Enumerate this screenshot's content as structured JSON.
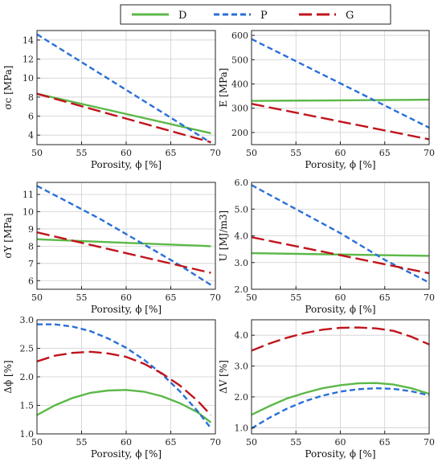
{
  "legend": [
    {
      "name": "D",
      "color": "#5cb848",
      "dash": "solid"
    },
    {
      "name": "P",
      "color": "#2a6fd8",
      "dash": "dashed"
    },
    {
      "name": "G",
      "color": "#c0141c",
      "dash": "longdash"
    }
  ],
  "chart_data": [
    {
      "type": "line",
      "ylabel": "σc [MPa]",
      "xlabel": "Porosity, ϕ [%]",
      "xlim": [
        50,
        70
      ],
      "ylim": [
        3,
        15
      ],
      "xticks": [
        50,
        55,
        60,
        65,
        70
      ],
      "yticks": [
        4,
        6,
        8,
        10,
        12,
        14
      ],
      "ytick_labels": [
        "4",
        "6",
        "8",
        "10",
        "12",
        "14"
      ],
      "series": [
        {
          "name": "D",
          "x": [
            50,
            69.5
          ],
          "y": [
            8.35,
            4.2
          ]
        },
        {
          "name": "P",
          "x": [
            50,
            69.5
          ],
          "y": [
            14.6,
            3.2
          ]
        },
        {
          "name": "G",
          "x": [
            50,
            69.5
          ],
          "y": [
            8.35,
            3.25
          ]
        }
      ]
    },
    {
      "type": "line",
      "ylabel": "E [MPa]",
      "xlabel": "Porosity, ϕ [%]",
      "xlim": [
        50,
        70
      ],
      "ylim": [
        150,
        620
      ],
      "xticks": [
        50,
        55,
        60,
        65,
        70
      ],
      "yticks": [
        200,
        300,
        400,
        500,
        600
      ],
      "ytick_labels": [
        "200",
        "300",
        "400",
        "500",
        "600"
      ],
      "series": [
        {
          "name": "D",
          "x": [
            50,
            70
          ],
          "y": [
            330,
            335
          ]
        },
        {
          "name": "P",
          "x": [
            50,
            70
          ],
          "y": [
            585,
            220
          ]
        },
        {
          "name": "G",
          "x": [
            50,
            70
          ],
          "y": [
            318,
            172
          ]
        }
      ]
    },
    {
      "type": "line",
      "ylabel": "σY [MPa]",
      "xlabel": "Porosity, ϕ [%]",
      "xlim": [
        50,
        70
      ],
      "ylim": [
        5.5,
        11.7
      ],
      "xticks": [
        50,
        55,
        60,
        65,
        70
      ],
      "yticks": [
        6,
        7,
        8,
        9,
        10,
        11
      ],
      "ytick_labels": [
        "6",
        "7",
        "8",
        "9",
        "10",
        "11"
      ],
      "series": [
        {
          "name": "D",
          "x": [
            50,
            69.5
          ],
          "y": [
            8.4,
            8.0
          ]
        },
        {
          "name": "P",
          "x": [
            50,
            57,
            63,
            66,
            69.5
          ],
          "y": [
            11.5,
            9.6,
            7.8,
            6.9,
            5.75
          ]
        },
        {
          "name": "G",
          "x": [
            50,
            69.5
          ],
          "y": [
            8.8,
            6.45
          ]
        }
      ]
    },
    {
      "type": "line",
      "ylabel": "U [MJ/m3]",
      "xlabel": "Porosity, ϕ [%]",
      "xlim": [
        50,
        70
      ],
      "ylim": [
        2.0,
        6.0
      ],
      "xticks": [
        50,
        55,
        60,
        65,
        70
      ],
      "yticks": [
        2.0,
        3.0,
        4.0,
        5.0,
        6.0
      ],
      "ytick_labels": [
        "2.0",
        "3.0",
        "4.0",
        "5.0",
        "6.0"
      ],
      "series": [
        {
          "name": "D",
          "x": [
            50,
            70
          ],
          "y": [
            3.35,
            3.25
          ]
        },
        {
          "name": "P",
          "x": [
            50,
            55,
            60,
            65,
            70
          ],
          "y": [
            5.9,
            5.0,
            4.1,
            3.1,
            2.25
          ]
        },
        {
          "name": "G",
          "x": [
            50,
            70
          ],
          "y": [
            3.95,
            2.6
          ]
        }
      ]
    },
    {
      "type": "line",
      "ylabel": "Δϕ [%]",
      "xlabel": "Porosity, ϕ [%]",
      "xlim": [
        50,
        70
      ],
      "ylim": [
        1.0,
        3.0
      ],
      "xticks": [
        50,
        55,
        60,
        65,
        70
      ],
      "yticks": [
        1.0,
        1.5,
        2.0,
        2.5,
        3.0
      ],
      "ytick_labels": [
        "1.0",
        "1.5",
        "2.0",
        "2.5",
        "3.0"
      ],
      "series": [
        {
          "name": "D",
          "x": [
            50,
            52,
            54,
            56,
            58,
            60,
            62,
            64,
            66,
            68,
            69.5
          ],
          "y": [
            1.33,
            1.5,
            1.63,
            1.72,
            1.76,
            1.77,
            1.74,
            1.66,
            1.54,
            1.38,
            1.2
          ]
        },
        {
          "name": "P",
          "x": [
            50,
            52,
            54,
            56,
            58,
            60,
            62,
            64,
            66,
            68,
            69.5
          ],
          "y": [
            2.92,
            2.92,
            2.88,
            2.8,
            2.67,
            2.51,
            2.3,
            2.05,
            1.75,
            1.4,
            1.1
          ]
        },
        {
          "name": "G",
          "x": [
            50,
            52,
            54,
            56,
            58,
            60,
            62,
            64,
            66,
            68,
            69.5
          ],
          "y": [
            2.27,
            2.37,
            2.42,
            2.44,
            2.41,
            2.35,
            2.23,
            2.06,
            1.85,
            1.58,
            1.33
          ]
        }
      ]
    },
    {
      "type": "line",
      "ylabel": "ΔV [%]",
      "xlabel": "Porosity, ϕ [%]",
      "xlim": [
        50,
        70
      ],
      "ylim": [
        0.8,
        4.5
      ],
      "xticks": [
        50,
        55,
        60,
        65,
        70
      ],
      "yticks": [
        1.0,
        2.0,
        3.0,
        4.0
      ],
      "ytick_labels": [
        "1.0",
        "2.0",
        "3.0",
        "4.0"
      ],
      "series": [
        {
          "name": "D",
          "x": [
            50,
            52,
            54,
            56,
            58,
            60,
            62,
            64,
            66,
            68,
            70
          ],
          "y": [
            1.42,
            1.7,
            1.95,
            2.13,
            2.28,
            2.38,
            2.44,
            2.45,
            2.4,
            2.28,
            2.1
          ]
        },
        {
          "name": "P",
          "x": [
            50,
            52,
            54,
            56,
            58,
            60,
            62,
            64,
            66,
            68,
            70
          ],
          "y": [
            0.98,
            1.32,
            1.62,
            1.86,
            2.04,
            2.17,
            2.25,
            2.28,
            2.26,
            2.18,
            2.05
          ]
        },
        {
          "name": "G",
          "x": [
            50,
            52,
            54,
            56,
            58,
            60,
            62,
            64,
            66,
            68,
            70
          ],
          "y": [
            3.5,
            3.73,
            3.92,
            4.07,
            4.18,
            4.24,
            4.25,
            4.22,
            4.14,
            3.95,
            3.7
          ]
        }
      ]
    }
  ]
}
